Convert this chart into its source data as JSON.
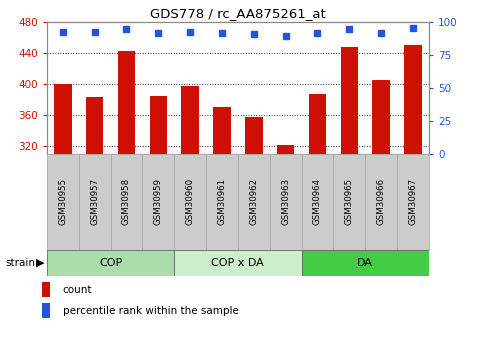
{
  "title": "GDS778 / rc_AA875261_at",
  "samples": [
    "GSM30955",
    "GSM30957",
    "GSM30958",
    "GSM30959",
    "GSM30960",
    "GSM30961",
    "GSM30962",
    "GSM30963",
    "GSM30964",
    "GSM30965",
    "GSM30966",
    "GSM30967"
  ],
  "counts": [
    400,
    383,
    443,
    384,
    397,
    370,
    357,
    321,
    387,
    448,
    405,
    451
  ],
  "percentile_ranks": [
    93,
    93,
    95,
    92,
    93,
    92,
    91,
    90,
    92,
    95,
    92,
    96
  ],
  "ylim_left": [
    310,
    480
  ],
  "ylim_right": [
    0,
    100
  ],
  "yticks_left": [
    320,
    360,
    400,
    440,
    480
  ],
  "yticks_right": [
    0,
    25,
    50,
    75,
    100
  ],
  "groups": [
    {
      "label": "COP",
      "start": 0,
      "end": 4,
      "color": "#aaddaa"
    },
    {
      "label": "COP x DA",
      "start": 4,
      "end": 8,
      "color": "#cceecc"
    },
    {
      "label": "DA",
      "start": 8,
      "end": 12,
      "color": "#44cc44"
    }
  ],
  "bar_color": "#cc1100",
  "dot_color": "#2255dd",
  "grid_color": "#333333",
  "sample_bg_color": "#cccccc",
  "sample_edge_color": "#aaaaaa",
  "left_axis_color": "#cc1100",
  "right_axis_color": "#2255dd",
  "legend_bar_color": "#cc1100",
  "legend_dot_color": "#2255dd"
}
